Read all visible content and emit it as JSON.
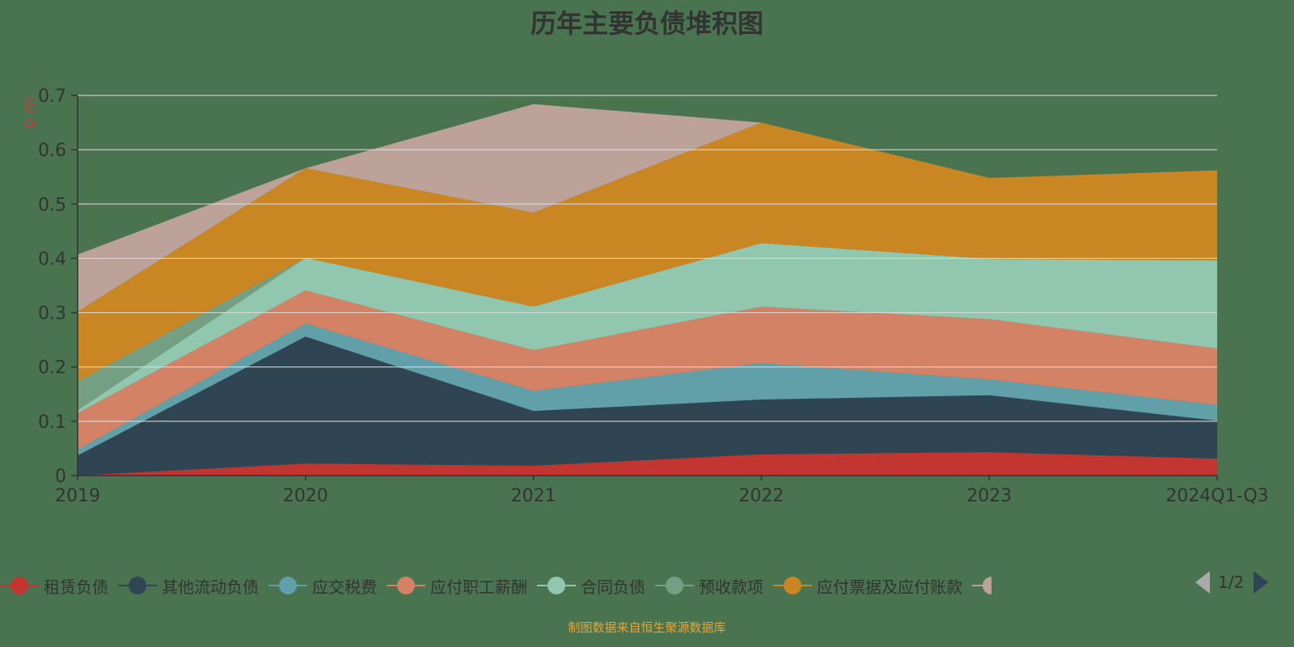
{
  "chart_data": {
    "type": "area",
    "stacked": true,
    "title": "历年主要负债堆积图",
    "ylabel": "(亿元)",
    "xlabel": "",
    "ylim": [
      0,
      0.7
    ],
    "yticks": [
      "0",
      "0.1",
      "0.2",
      "0.3",
      "0.4",
      "0.5",
      "0.6",
      "0.7"
    ],
    "categories": [
      "2019",
      "2020",
      "2021",
      "2022",
      "2023",
      "2024Q1-Q3"
    ],
    "grid": true,
    "legend_position": "bottom",
    "series": [
      {
        "name": "租赁负债",
        "color": "#c23531",
        "values": [
          0,
          0.022,
          0.018,
          0.039,
          0.043,
          0.031
        ]
      },
      {
        "name": "其他流动负债",
        "color": "#2f4554",
        "values": [
          0.037,
          0.234,
          0.101,
          0.101,
          0.105,
          0.07
        ]
      },
      {
        "name": "应交税费",
        "color": "#61a0a8",
        "values": [
          0.011,
          0.024,
          0.037,
          0.067,
          0.029,
          0.029
        ]
      },
      {
        "name": "应付职工薪酬",
        "color": "#d48265",
        "values": [
          0.067,
          0.061,
          0.075,
          0.104,
          0.111,
          0.104
        ]
      },
      {
        "name": "合同负债",
        "color": "#91c7ae",
        "values": [
          0.005,
          0.06,
          0.08,
          0.117,
          0.111,
          0.162
        ]
      },
      {
        "name": "预收款项",
        "color": "#749f83",
        "values": [
          0.053,
          0,
          0,
          0,
          0,
          0
        ]
      },
      {
        "name": "应付票据及应付账款",
        "color": "#ca8622",
        "values": [
          0.129,
          0.165,
          0.173,
          0.222,
          0.149,
          0.166
        ]
      },
      {
        "color": "#bda29a",
        "values": [
          0.105,
          0,
          0.2,
          0,
          0,
          0
        ]
      }
    ]
  },
  "legend_pager": "1/2",
  "footer": "制图数据来自恒生聚源数据库"
}
